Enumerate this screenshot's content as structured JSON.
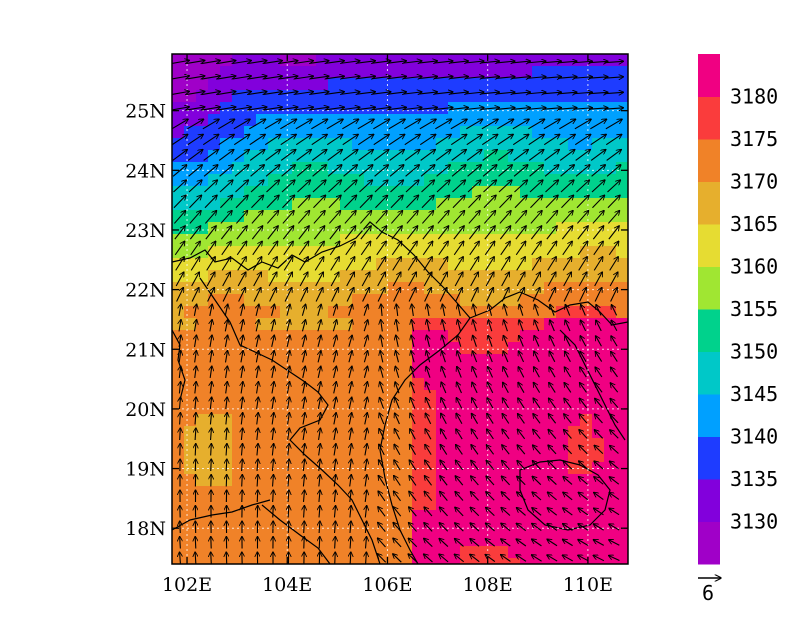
{
  "map": {
    "lon_range": [
      101.7,
      110.8
    ],
    "lat_range": [
      17.4,
      25.95
    ],
    "lon_ticks": [
      {
        "value": 102,
        "label": "102E"
      },
      {
        "value": 104,
        "label": "104E"
      },
      {
        "value": 106,
        "label": "106E"
      },
      {
        "value": 108,
        "label": "108E"
      },
      {
        "value": 110,
        "label": "110E"
      }
    ],
    "lat_ticks": [
      {
        "value": 18,
        "label": "18N"
      },
      {
        "value": 19,
        "label": "19N"
      },
      {
        "value": 20,
        "label": "20N"
      },
      {
        "value": 21,
        "label": "21N"
      },
      {
        "value": 22,
        "label": "22N"
      },
      {
        "value": 23,
        "label": "23N"
      },
      {
        "value": 24,
        "label": "24N"
      },
      {
        "value": 25,
        "label": "25N"
      }
    ],
    "gridlines": "dotted"
  },
  "colorbar": {
    "levels": [
      3130,
      3135,
      3140,
      3145,
      3150,
      3155,
      3160,
      3165,
      3170,
      3175,
      3180
    ],
    "labels": [
      "3130",
      "3135",
      "3140",
      "3145",
      "3150",
      "3155",
      "3160",
      "3165",
      "3170",
      "3175",
      "3180"
    ],
    "colors": [
      "#a000c8",
      "#8200dc",
      "#1e3cff",
      "#00a0ff",
      "#00c8c8",
      "#00d28c",
      "#a0e632",
      "#e6dc32",
      "#e6af2d",
      "#f08228",
      "#fa3c3c",
      "#f00082"
    ]
  },
  "vector_reference": {
    "label": "6"
  }
}
